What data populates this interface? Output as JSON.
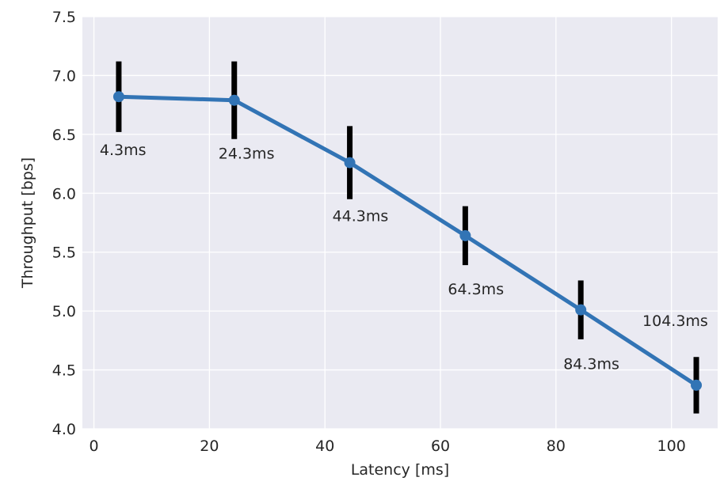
{
  "chart_data": {
    "type": "line",
    "title": "",
    "xlabel": "Latency [ms]",
    "ylabel": "Throughput [bps]",
    "xlim": [
      -2,
      108
    ],
    "ylim": [
      4.0,
      7.5
    ],
    "xticks": [
      0,
      20,
      40,
      60,
      80,
      100
    ],
    "yticks": [
      4.0,
      4.5,
      5.0,
      5.5,
      6.0,
      6.5,
      7.0,
      7.5
    ],
    "xtick_labels": [
      "0",
      "20",
      "40",
      "60",
      "80",
      "100"
    ],
    "ytick_labels": [
      "4.0",
      "4.5",
      "5.0",
      "5.5",
      "6.0",
      "6.5",
      "7.0",
      "7.5"
    ],
    "grid": true,
    "series": [
      {
        "x": [
          4.3,
          24.3,
          44.3,
          64.3,
          84.3,
          104.3
        ],
        "y": [
          6.82,
          6.79,
          6.26,
          5.64,
          5.01,
          4.37
        ],
        "error": [
          0.3,
          0.33,
          0.31,
          0.25,
          0.25,
          0.24
        ],
        "point_labels": [
          "4.3ms",
          "24.3ms",
          "44.3ms",
          "64.3ms",
          "84.3ms",
          "104.3ms"
        ],
        "color": "#3274b5",
        "error_color": "#000000"
      }
    ],
    "background_color": "#eaeaf2",
    "grid_color": "#ffffff"
  }
}
